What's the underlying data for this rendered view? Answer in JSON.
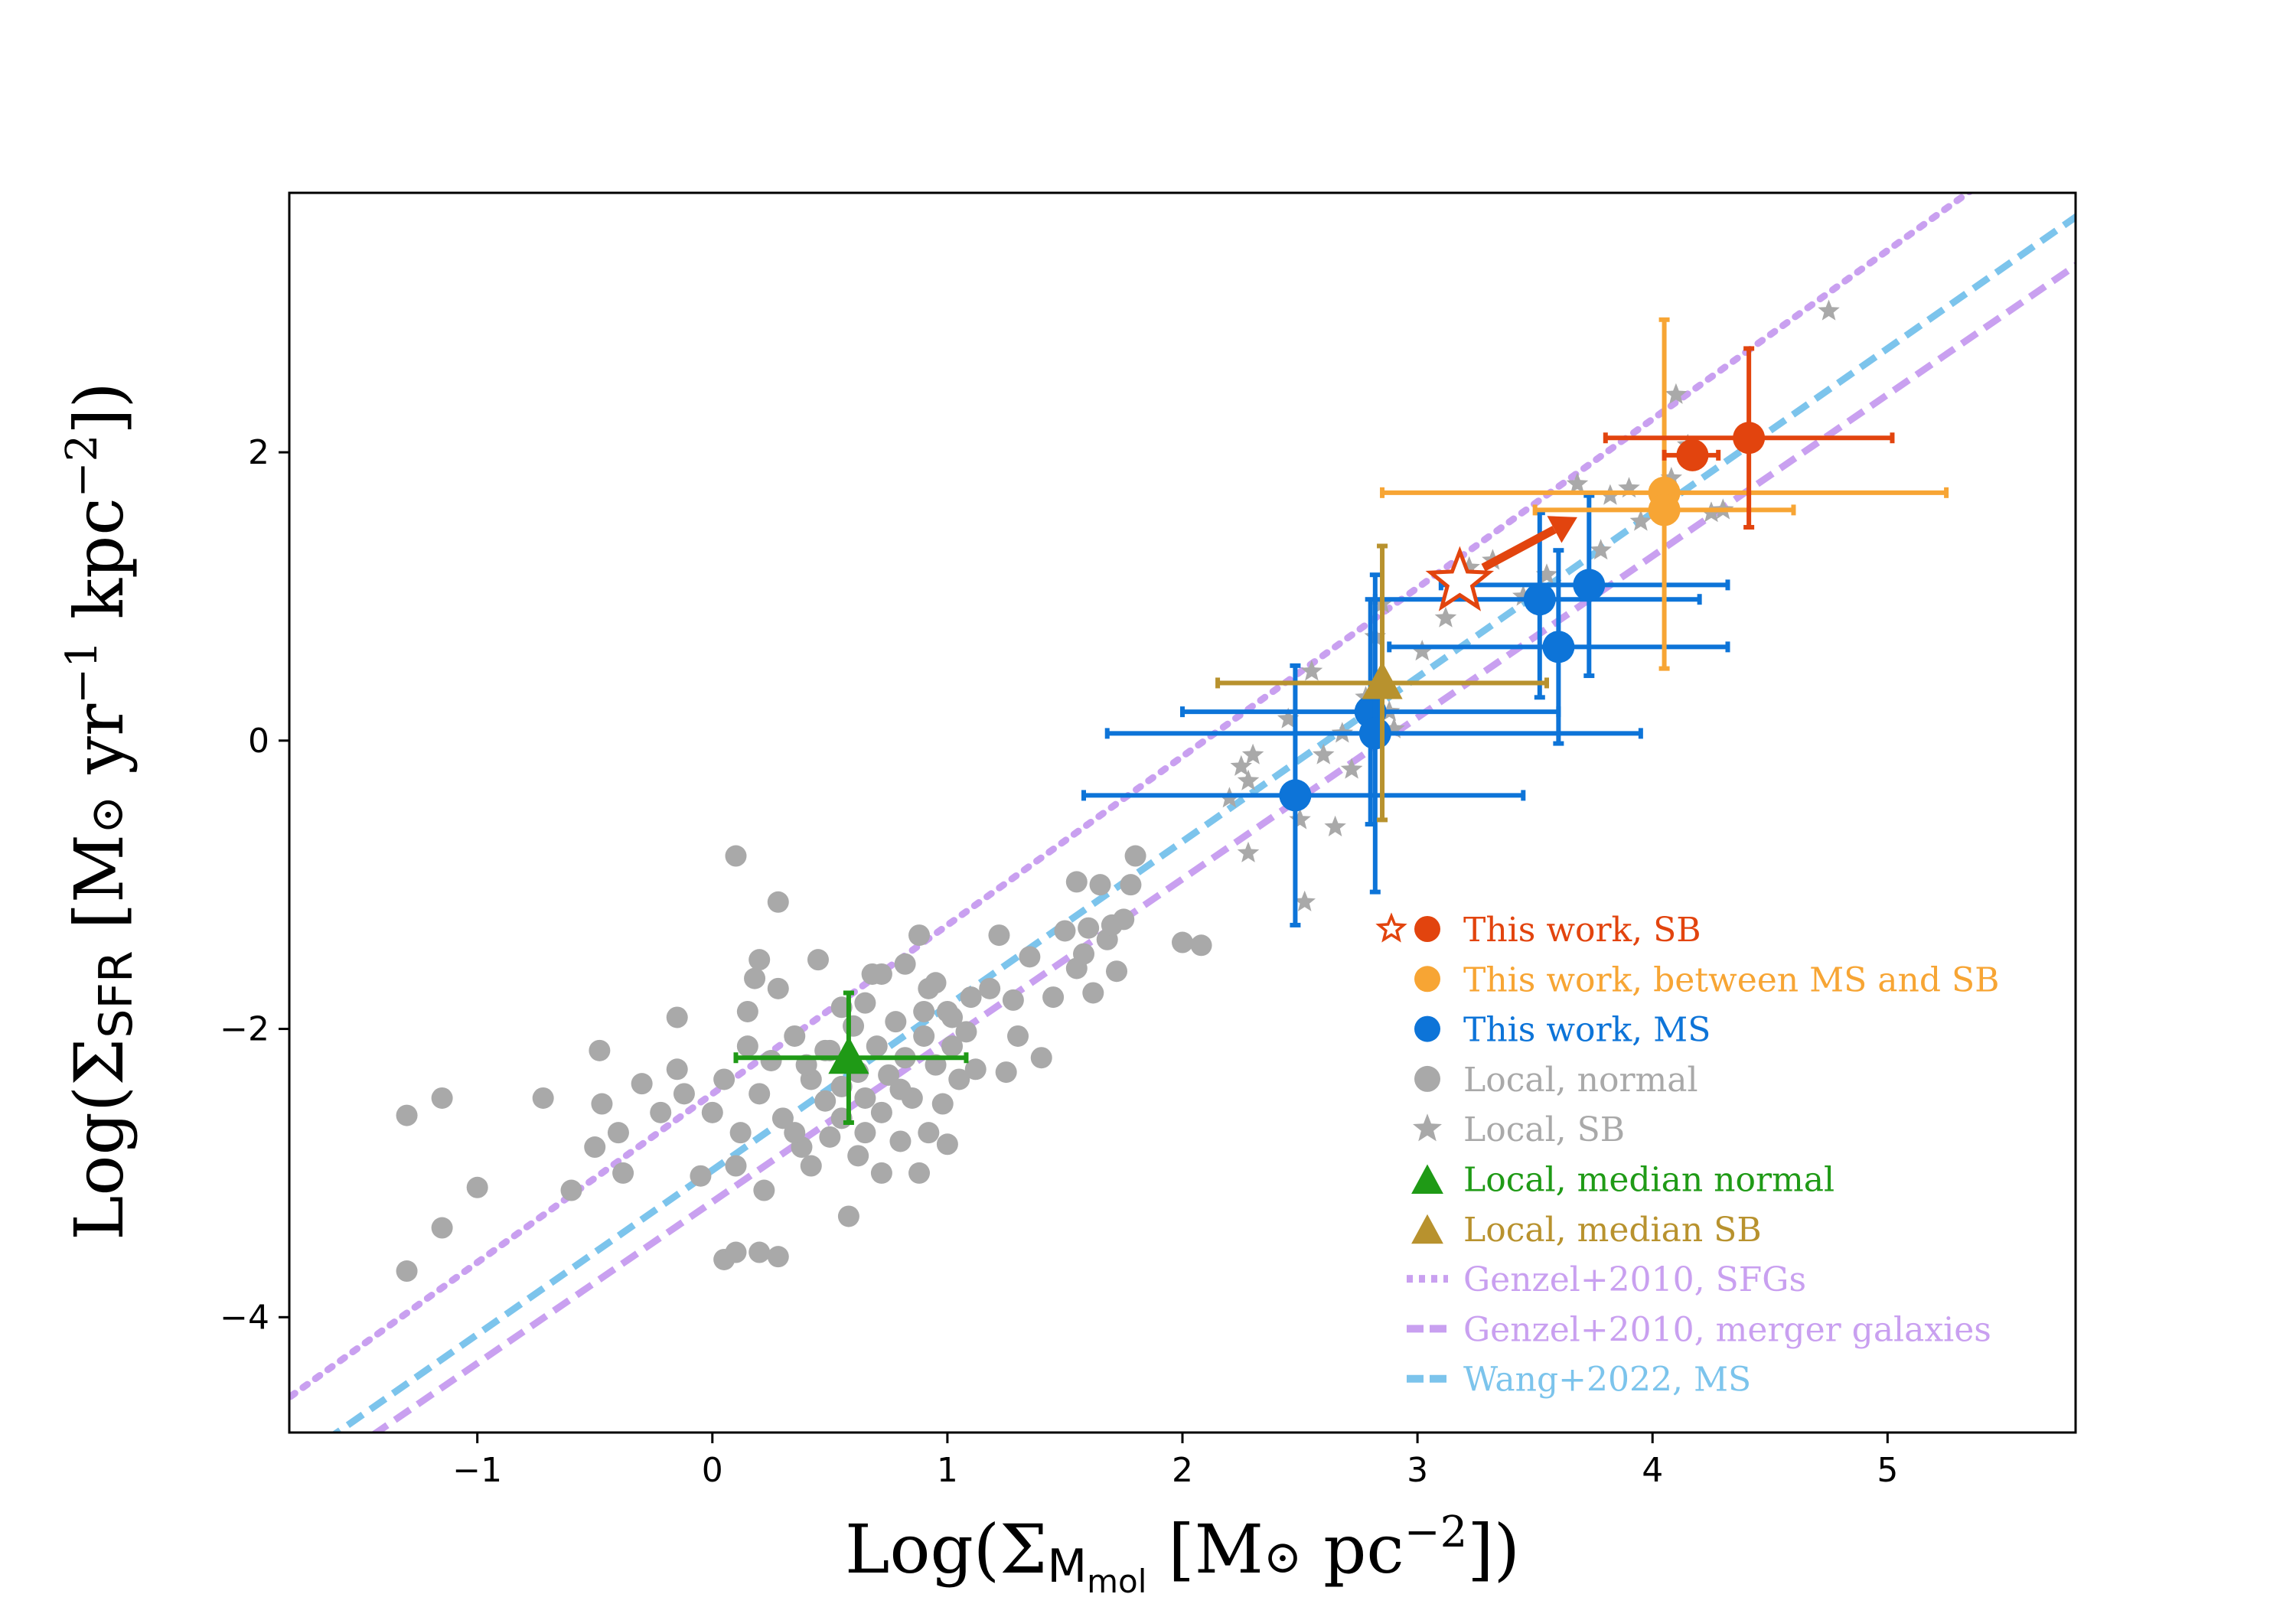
{
  "chart_data": {
    "type": "scatter",
    "xlabel": "Log(Σ_Mmol [M⊙ pc^-2])",
    "ylabel": "Log(Σ_SFR [M⊙ yr^-1 kpc^-2])",
    "xlabel_parts": {
      "pre": "Log(Σ",
      "sub": "M",
      "subsub": "mol",
      "mid": " [M",
      "sun": "⊙",
      "unit": " pc",
      "sup": "−2",
      "post": "])"
    },
    "ylabel_parts": {
      "pre": "Log(Σ",
      "sub": "SFR",
      "mid": " [M",
      "sun": "⊙",
      "unit1": " yr",
      "sup1": "−1",
      "unit2": " kpc",
      "sup2": "−2",
      "post": "])"
    },
    "xlim": [
      -1.8,
      5.8
    ],
    "ylim": [
      -4.8,
      3.8
    ],
    "xticks": [
      -1,
      0,
      1,
      2,
      3,
      4,
      5
    ],
    "xtick_labels": [
      "−1",
      "0",
      "1",
      "2",
      "3",
      "4",
      "5"
    ],
    "yticks": [
      -4,
      -2,
      0,
      2
    ],
    "ytick_labels": [
      "−4",
      "−2",
      "0",
      "2"
    ],
    "lines": [
      {
        "name": "Genzel+2010, SFGs",
        "style": "dotted",
        "color": "#c9a0f0",
        "slope": 1.17,
        "intercept": -2.45
      },
      {
        "name": "Genzel+2010, merger galaxies",
        "style": "dashed",
        "color": "#c9a0f0",
        "slope": 1.12,
        "intercept": -3.2
      },
      {
        "name": "Wang+2022, MS",
        "style": "dashed",
        "color": "#7cc4ec",
        "slope": 1.14,
        "intercept": -2.98
      }
    ],
    "series": [
      {
        "name": "Local, normal",
        "marker": "circle",
        "color": "#a9a9a9",
        "points": [
          [
            -1.3,
            -2.6
          ],
          [
            -1.3,
            -3.68
          ],
          [
            -1.15,
            -2.48
          ],
          [
            -1.15,
            -3.38
          ],
          [
            -1.0,
            -3.1
          ],
          [
            -0.72,
            -2.48
          ],
          [
            -0.6,
            -3.12
          ],
          [
            -0.5,
            -2.82
          ],
          [
            -0.48,
            -2.15
          ],
          [
            -0.47,
            -2.52
          ],
          [
            -0.4,
            -2.72
          ],
          [
            -0.38,
            -3.0
          ],
          [
            -0.3,
            -2.38
          ],
          [
            -0.22,
            -2.58
          ],
          [
            -0.15,
            -1.92
          ],
          [
            -0.15,
            -2.28
          ],
          [
            -0.12,
            -2.45
          ],
          [
            -0.05,
            -3.02
          ],
          [
            0.0,
            -2.58
          ],
          [
            0.05,
            -2.35
          ],
          [
            0.1,
            -2.95
          ],
          [
            0.12,
            -2.72
          ],
          [
            0.18,
            -1.65
          ],
          [
            0.2,
            -2.45
          ],
          [
            0.22,
            -3.12
          ],
          [
            0.25,
            -2.22
          ],
          [
            0.3,
            -2.62
          ],
          [
            0.35,
            -2.05
          ],
          [
            0.38,
            -2.82
          ],
          [
            0.42,
            -2.35
          ],
          [
            0.45,
            -1.52
          ],
          [
            0.48,
            -2.5
          ],
          [
            0.5,
            -2.75
          ],
          [
            0.55,
            -1.85
          ],
          [
            0.58,
            -3.3
          ],
          [
            0.05,
            -3.6
          ],
          [
            0.1,
            -3.55
          ],
          [
            0.2,
            -3.55
          ],
          [
            0.1,
            -0.8
          ],
          [
            0.28,
            -1.12
          ],
          [
            0.28,
            -3.58
          ],
          [
            0.5,
            -2.15
          ],
          [
            0.55,
            -2.4
          ],
          [
            0.6,
            -1.98
          ],
          [
            0.62,
            -2.3
          ],
          [
            0.65,
            -2.48
          ],
          [
            0.68,
            -1.62
          ],
          [
            0.7,
            -2.12
          ],
          [
            0.72,
            -2.58
          ],
          [
            0.75,
            -2.32
          ],
          [
            0.78,
            -1.95
          ],
          [
            0.8,
            -2.42
          ],
          [
            0.82,
            -2.2
          ],
          [
            0.85,
            -2.48
          ],
          [
            0.88,
            -1.35
          ],
          [
            0.9,
            -2.05
          ],
          [
            0.92,
            -1.72
          ],
          [
            0.95,
            -2.25
          ],
          [
            0.98,
            -2.52
          ],
          [
            1.0,
            -1.88
          ],
          [
            1.02,
            -2.12
          ],
          [
            1.05,
            -2.35
          ],
          [
            1.08,
            -2.02
          ],
          [
            1.12,
            -2.28
          ],
          [
            1.18,
            -1.72
          ],
          [
            1.22,
            -1.35
          ],
          [
            1.25,
            -2.3
          ],
          [
            1.28,
            -1.8
          ],
          [
            1.3,
            -2.05
          ],
          [
            1.35,
            -1.5
          ],
          [
            1.4,
            -2.2
          ],
          [
            1.45,
            -1.78
          ],
          [
            1.5,
            -1.32
          ],
          [
            1.55,
            -1.58
          ],
          [
            1.58,
            -1.48
          ],
          [
            1.6,
            -1.3
          ],
          [
            1.62,
            -1.75
          ],
          [
            1.65,
            -1.0
          ],
          [
            1.68,
            -1.38
          ],
          [
            1.7,
            -1.28
          ],
          [
            1.72,
            -1.6
          ],
          [
            1.75,
            -1.24
          ],
          [
            1.78,
            -1.0
          ],
          [
            1.8,
            -0.8
          ],
          [
            2.0,
            -1.4
          ],
          [
            2.08,
            -1.42
          ],
          [
            1.55,
            -0.98
          ],
          [
            0.62,
            -2.88
          ],
          [
            0.72,
            -3.0
          ],
          [
            0.88,
            -3.0
          ],
          [
            0.92,
            -2.72
          ],
          [
            1.0,
            -2.8
          ],
          [
            0.35,
            -2.72
          ],
          [
            0.42,
            -2.95
          ],
          [
            0.15,
            -1.88
          ],
          [
            0.15,
            -2.12
          ],
          [
            0.2,
            -1.52
          ],
          [
            0.28,
            -1.72
          ],
          [
            0.4,
            -2.25
          ],
          [
            0.48,
            -2.15
          ],
          [
            0.65,
            -1.82
          ],
          [
            0.72,
            -1.62
          ],
          [
            0.82,
            -1.55
          ],
          [
            0.9,
            -1.88
          ],
          [
            0.95,
            -1.68
          ],
          [
            1.02,
            -1.92
          ],
          [
            1.1,
            -1.78
          ],
          [
            0.55,
            -2.62
          ],
          [
            0.65,
            -2.72
          ],
          [
            0.8,
            -2.78
          ]
        ]
      },
      {
        "name": "Local, SB",
        "marker": "star",
        "color": "#a9a9a9",
        "points": [
          [
            2.2,
            -0.4
          ],
          [
            2.25,
            -0.18
          ],
          [
            2.28,
            -0.28
          ],
          [
            2.3,
            -0.1
          ],
          [
            2.28,
            -0.78
          ],
          [
            2.45,
            0.15
          ],
          [
            2.5,
            -0.55
          ],
          [
            2.52,
            -1.12
          ],
          [
            2.55,
            0.48
          ],
          [
            2.6,
            -0.1
          ],
          [
            2.65,
            -0.6
          ],
          [
            2.68,
            0.05
          ],
          [
            2.72,
            -0.2
          ],
          [
            2.78,
            0.3
          ],
          [
            2.82,
            0.72
          ],
          [
            2.85,
            0.95
          ],
          [
            2.88,
            0.2
          ],
          [
            2.9,
            0.08
          ],
          [
            3.02,
            0.62
          ],
          [
            3.12,
            0.85
          ],
          [
            3.22,
            1.2
          ],
          [
            3.32,
            1.25
          ],
          [
            3.45,
            1.0
          ],
          [
            3.55,
            1.15
          ],
          [
            3.68,
            1.78
          ],
          [
            3.78,
            1.32
          ],
          [
            3.82,
            1.7
          ],
          [
            3.9,
            1.75
          ],
          [
            3.95,
            1.52
          ],
          [
            4.08,
            1.82
          ],
          [
            4.1,
            2.4
          ],
          [
            4.15,
            2.05
          ],
          [
            4.25,
            1.58
          ],
          [
            4.3,
            1.6
          ],
          [
            4.75,
            2.98
          ]
        ]
      }
    ],
    "errorbar_series": [
      {
        "name": "This work, MS",
        "marker": "circle",
        "color": "#0d74d8",
        "points": [
          {
            "x": 2.48,
            "y": -0.38,
            "xmin": 1.58,
            "xmax": 3.45,
            "ymin": -1.28,
            "ymax": 0.52
          },
          {
            "x": 2.8,
            "y": 0.2,
            "xmin": 2.0,
            "xmax": 3.6,
            "ymin": -0.58,
            "ymax": 0.98
          },
          {
            "x": 2.82,
            "y": 0.05,
            "xmin": 1.68,
            "xmax": 3.95,
            "ymin": -1.05,
            "ymax": 1.15
          },
          {
            "x": 3.52,
            "y": 0.98,
            "xmin": 2.82,
            "xmax": 4.2,
            "ymin": 0.3,
            "ymax": 1.58
          },
          {
            "x": 3.6,
            "y": 0.65,
            "xmin": 2.88,
            "xmax": 4.32,
            "ymin": -0.02,
            "ymax": 1.32
          },
          {
            "x": 3.73,
            "y": 1.08,
            "xmin": 3.1,
            "xmax": 4.32,
            "ymin": 0.45,
            "ymax": 1.7
          }
        ]
      },
      {
        "name": "This work, between MS and SB",
        "marker": "circle",
        "color": "#f7a534",
        "points": [
          {
            "x": 4.05,
            "y": 1.72,
            "xmin": 2.85,
            "xmax": 5.25,
            "ymin": 0.5,
            "ymax": 2.92
          },
          {
            "x": 4.05,
            "y": 1.6,
            "xmin": 3.5,
            "xmax": 4.6,
            "ymin": 1.58,
            "ymax": 1.62
          }
        ]
      },
      {
        "name": "This work, SB",
        "marker": "circle",
        "color": "#e2440e",
        "points": [
          {
            "x": 4.17,
            "y": 1.98,
            "xmin": 4.05,
            "xmax": 4.28,
            "ymin": 1.93,
            "ymax": 2.03
          },
          {
            "x": 4.41,
            "y": 2.1,
            "xmin": 3.8,
            "xmax": 5.02,
            "ymin": 1.48,
            "ymax": 2.72
          }
        ]
      },
      {
        "name": "Local, median normal",
        "marker": "triangle",
        "color": "#1f9a16",
        "points": [
          {
            "x": 0.58,
            "y": -2.2,
            "xmin": 0.1,
            "xmax": 1.08,
            "ymin": -2.65,
            "ymax": -1.75
          }
        ]
      },
      {
        "name": "Local, median SB",
        "marker": "triangle",
        "color": "#b8922e",
        "points": [
          {
            "x": 2.85,
            "y": 0.4,
            "xmin": 2.15,
            "xmax": 3.55,
            "ymin": -0.55,
            "ymax": 1.35
          }
        ]
      }
    ],
    "annotations": [
      {
        "name": "This work, SB (open star)",
        "marker": "open-star",
        "color": "#e2440e",
        "x": 3.18,
        "y": 1.1
      },
      {
        "name": "arrow",
        "color": "#e2440e",
        "from": [
          3.28,
          1.2
        ],
        "to": [
          3.68,
          1.55
        ]
      }
    ],
    "legend": {
      "placement": "lower-right",
      "entries": [
        {
          "label": "This work, SB",
          "color": "#e2440e",
          "marker": "star-circle"
        },
        {
          "label": "This work, between MS and SB",
          "color": "#f7a534",
          "marker": "circle"
        },
        {
          "label": "This work, MS",
          "color": "#0d74d8",
          "marker": "circle"
        },
        {
          "label": "Local, normal",
          "color": "#a9a9a9",
          "marker": "circle"
        },
        {
          "label": "Local, SB",
          "color": "#a9a9a9",
          "marker": "star"
        },
        {
          "label": "Local, median normal",
          "color": "#1f9a16",
          "marker": "triangle"
        },
        {
          "label": "Local, median SB",
          "color": "#b8922e",
          "marker": "triangle"
        },
        {
          "label": "Genzel+2010, SFGs",
          "color": "#c9a0f0",
          "marker": "dotted"
        },
        {
          "label": "Genzel+2010, merger galaxies",
          "color": "#c9a0f0",
          "marker": "dashed"
        },
        {
          "label": "Wang+2022, MS",
          "color": "#7cc4ec",
          "marker": "dashed"
        }
      ]
    }
  }
}
